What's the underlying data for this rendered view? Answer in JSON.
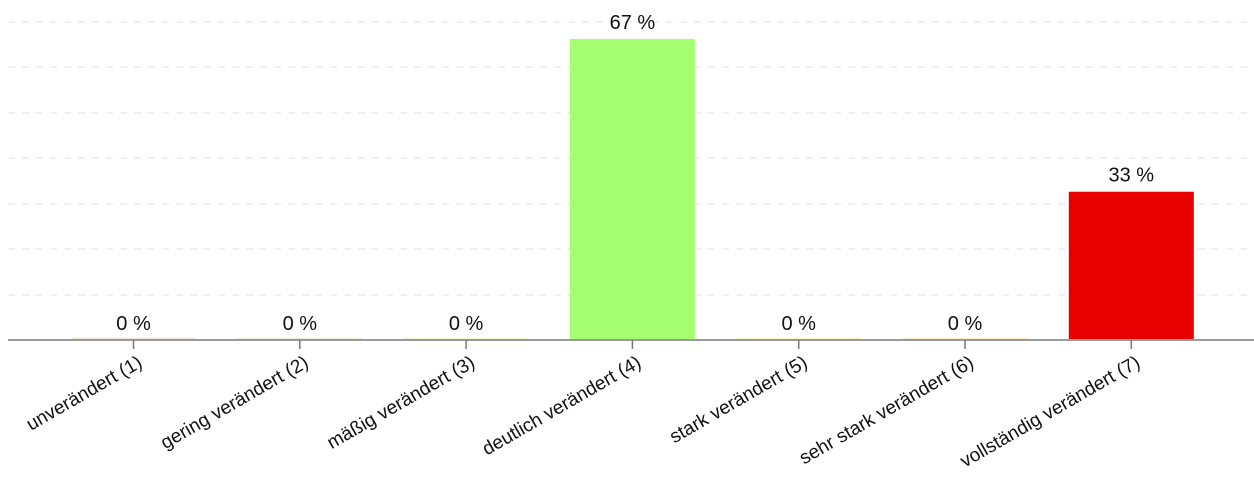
{
  "chart_data": {
    "type": "bar",
    "categories": [
      "unverändert (1)",
      "gering verändert (2)",
      "mäßig verändert (3)",
      "deutlich verändert (4)",
      "stark verändert (5)",
      "sehr stark verändert (6)",
      "vollständig verändert (7)"
    ],
    "values": [
      0,
      0,
      0,
      67,
      0,
      0,
      33
    ],
    "data_labels": [
      "0 %",
      "0 %",
      "0 %",
      "67 %",
      "0 %",
      "0 %",
      "33 %"
    ],
    "colors": [
      "#8a7a3a",
      "#a4a034",
      "#b8c83a",
      "#a6ff70",
      "#d8c800",
      "#e08000",
      "#e60000"
    ],
    "unit": "%",
    "ylim": [
      0,
      70
    ],
    "grid": true,
    "legend": "none"
  }
}
